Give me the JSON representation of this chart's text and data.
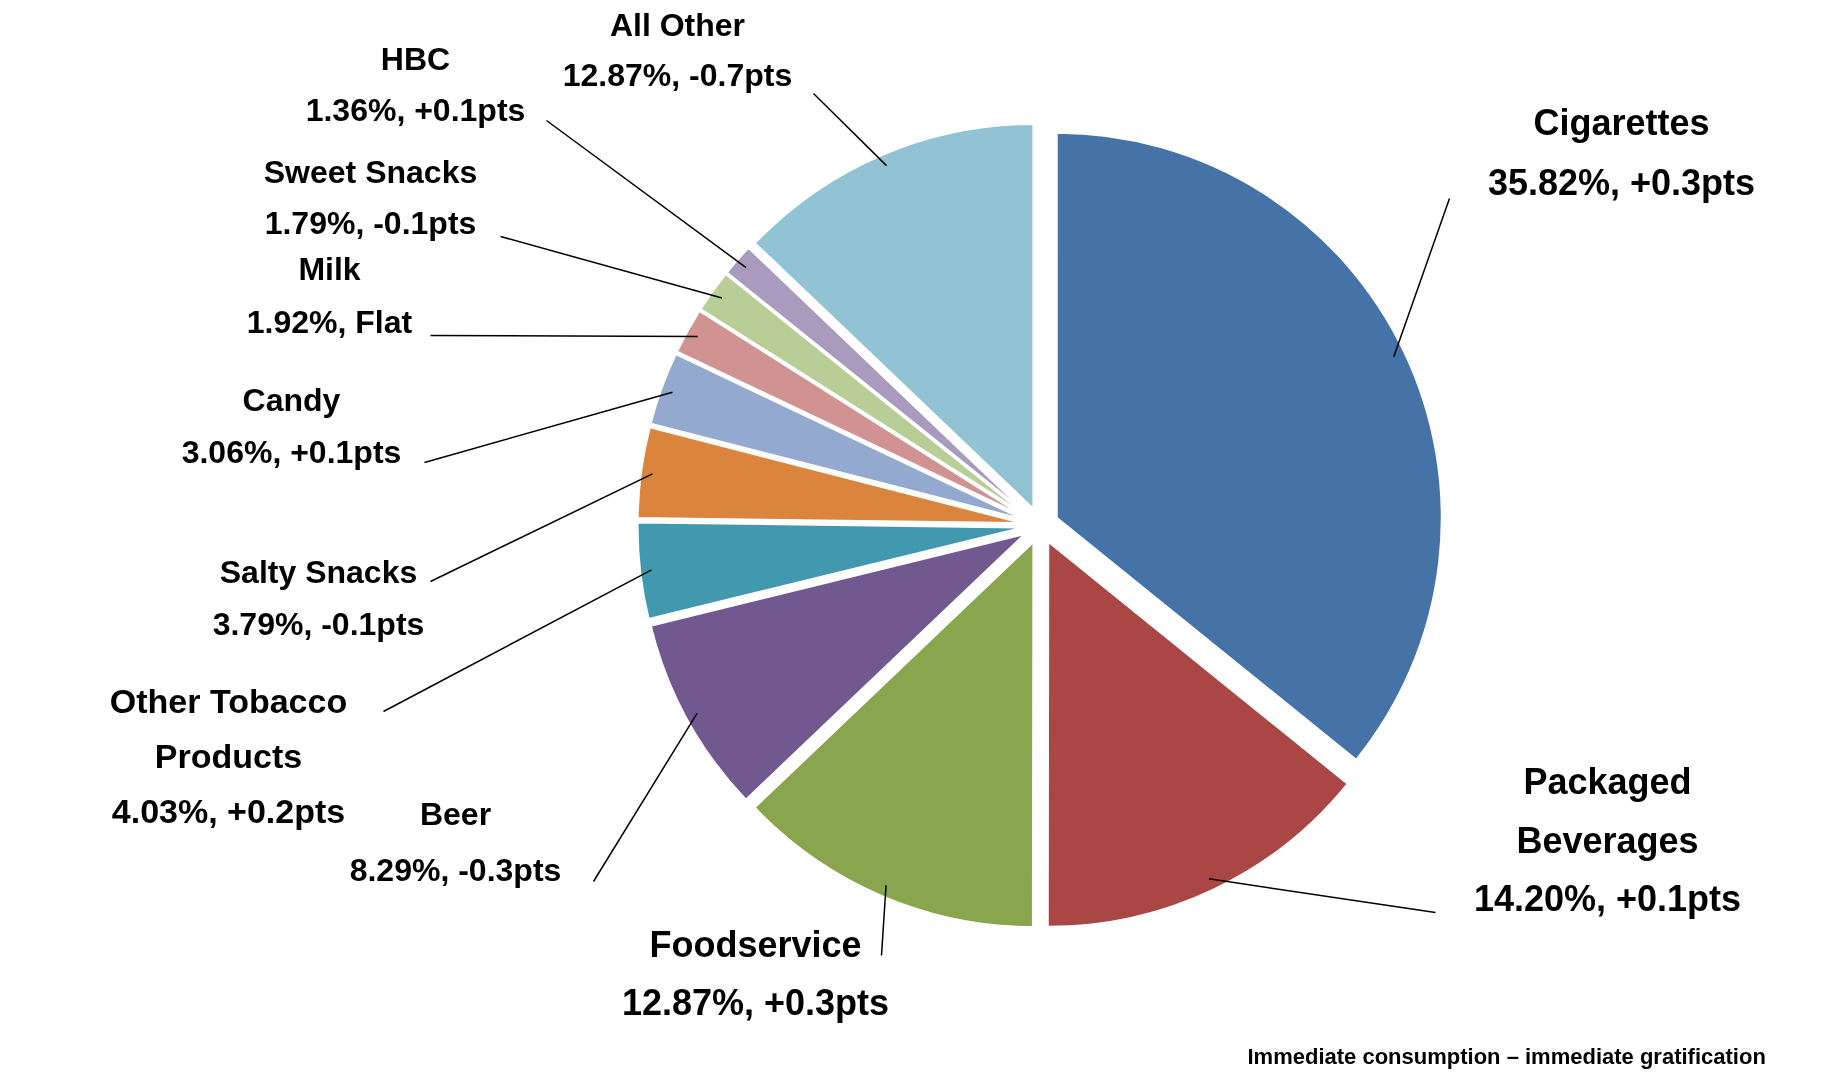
{
  "chart_data": {
    "type": "pie",
    "categories": [
      "Cigarettes",
      "Packaged Beverages",
      "Foodservice",
      "Beer",
      "Other Tobacco Products",
      "Salty Snacks",
      "Candy",
      "Milk",
      "Sweet Snacks",
      "HBC",
      "All Other"
    ],
    "values": [
      35.82,
      14.2,
      12.87,
      8.29,
      4.03,
      3.79,
      3.06,
      1.92,
      1.79,
      1.36,
      12.87
    ],
    "colors": [
      "#4572a7",
      "#aa4643",
      "#89a54e",
      "#71588f",
      "#4198af",
      "#db843d",
      "#93a9cf",
      "#d19392",
      "#b9cd96",
      "#a99bbd",
      "#92c3d4"
    ],
    "value_labels": [
      "35.82%, +0.3pts",
      "14.20%, +0.1pts",
      "12.87%, +0.3pts",
      "8.29%, -0.3pts",
      "4.03%, +0.2pts",
      "3.79%, -0.1pts",
      "3.06%, +0.1pts",
      "1.92%, Flat",
      "1.79%, -0.1pts",
      "1.36%, +0.1pts",
      "12.87%, -0.7pts"
    ],
    "annotations": [
      "Immediate consumption – immediate gratification"
    ]
  }
}
